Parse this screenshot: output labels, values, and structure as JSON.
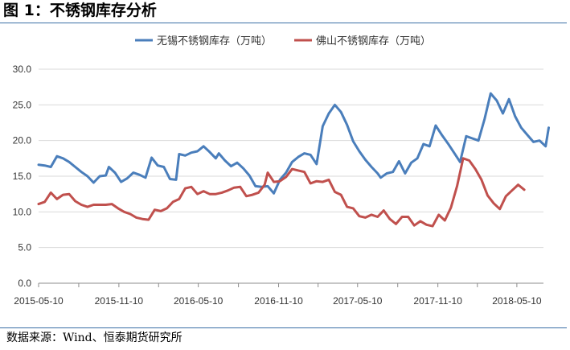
{
  "header": {
    "title": "图 1：不锈钢库存分析"
  },
  "footer": {
    "source": "数据来源：Wind、恒泰期货研究所"
  },
  "chart_data": {
    "type": "line",
    "title": "",
    "xlabel": "",
    "ylabel": "",
    "ylim": [
      0,
      30
    ],
    "yticks": [
      "0.0",
      "5.0",
      "10.0",
      "15.0",
      "20.0",
      "25.0",
      "30.0"
    ],
    "xtick_labels": [
      "2015-05-10",
      "2015-11-10",
      "2016-05-10",
      "2016-11-10",
      "2017-05-10",
      "2017-11-10",
      "2018-05-10"
    ],
    "x_range": [
      "2015-05-10",
      "2018-07-10"
    ],
    "grid": "horizontal",
    "legend_position": "top-center",
    "series": [
      {
        "name": "无锡不锈钢库存（万吨）",
        "color": "#4a7ebb",
        "points": [
          [
            "2015-05-10",
            16.6
          ],
          [
            "2015-05-24",
            16.5
          ],
          [
            "2015-06-07",
            16.3
          ],
          [
            "2015-06-21",
            17.8
          ],
          [
            "2015-07-05",
            17.5
          ],
          [
            "2015-07-19",
            17.0
          ],
          [
            "2015-08-02",
            16.3
          ],
          [
            "2015-08-16",
            15.6
          ],
          [
            "2015-08-30",
            15.0
          ],
          [
            "2015-09-13",
            14.1
          ],
          [
            "2015-09-27",
            15.0
          ],
          [
            "2015-10-11",
            15.1
          ],
          [
            "2015-10-18",
            16.3
          ],
          [
            "2015-11-01",
            15.5
          ],
          [
            "2015-11-15",
            14.2
          ],
          [
            "2015-11-29",
            14.7
          ],
          [
            "2015-12-13",
            15.5
          ],
          [
            "2015-12-27",
            15.2
          ],
          [
            "2016-01-10",
            14.8
          ],
          [
            "2016-01-24",
            17.6
          ],
          [
            "2016-02-07",
            16.5
          ],
          [
            "2016-02-21",
            16.3
          ],
          [
            "2016-03-06",
            14.6
          ],
          [
            "2016-03-20",
            14.5
          ],
          [
            "2016-03-27",
            18.1
          ],
          [
            "2016-04-10",
            17.9
          ],
          [
            "2016-04-24",
            18.3
          ],
          [
            "2016-05-08",
            18.5
          ],
          [
            "2016-05-22",
            19.2
          ],
          [
            "2016-06-05",
            18.4
          ],
          [
            "2016-06-19",
            17.5
          ],
          [
            "2016-06-26",
            18.2
          ],
          [
            "2016-07-10",
            17.2
          ],
          [
            "2016-07-24",
            16.4
          ],
          [
            "2016-08-07",
            16.9
          ],
          [
            "2016-08-21",
            16.1
          ],
          [
            "2016-09-04",
            15.1
          ],
          [
            "2016-09-18",
            13.6
          ],
          [
            "2016-10-02",
            13.5
          ],
          [
            "2016-10-16",
            13.6
          ],
          [
            "2016-10-30",
            12.6
          ],
          [
            "2016-11-13",
            14.5
          ],
          [
            "2016-11-27",
            15.5
          ],
          [
            "2016-12-11",
            17.0
          ],
          [
            "2016-12-25",
            17.7
          ],
          [
            "2017-01-08",
            18.2
          ],
          [
            "2017-01-22",
            18.0
          ],
          [
            "2017-02-05",
            16.7
          ],
          [
            "2017-02-19",
            22.0
          ],
          [
            "2017-03-05",
            23.8
          ],
          [
            "2017-03-19",
            25.0
          ],
          [
            "2017-04-02",
            24.0
          ],
          [
            "2017-04-16",
            22.2
          ],
          [
            "2017-04-30",
            19.9
          ],
          [
            "2017-05-14",
            18.5
          ],
          [
            "2017-05-28",
            17.3
          ],
          [
            "2017-06-11",
            16.3
          ],
          [
            "2017-06-25",
            15.4
          ],
          [
            "2017-07-02",
            14.8
          ],
          [
            "2017-07-16",
            15.4
          ],
          [
            "2017-07-30",
            15.6
          ],
          [
            "2017-08-13",
            17.1
          ],
          [
            "2017-08-27",
            15.4
          ],
          [
            "2017-09-10",
            16.9
          ],
          [
            "2017-09-24",
            17.5
          ],
          [
            "2017-10-08",
            19.5
          ],
          [
            "2017-10-22",
            19.2
          ],
          [
            "2017-11-05",
            22.1
          ],
          [
            "2017-11-19",
            20.8
          ],
          [
            "2017-12-03",
            19.6
          ],
          [
            "2017-12-17",
            18.3
          ],
          [
            "2017-12-31",
            17.0
          ],
          [
            "2018-01-14",
            20.6
          ],
          [
            "2018-01-28",
            20.3
          ],
          [
            "2018-02-11",
            20.0
          ],
          [
            "2018-02-25",
            23.0
          ],
          [
            "2018-03-11",
            26.6
          ],
          [
            "2018-03-25",
            25.6
          ],
          [
            "2018-04-08",
            23.8
          ],
          [
            "2018-04-22",
            25.8
          ],
          [
            "2018-05-06",
            23.4
          ],
          [
            "2018-05-20",
            21.8
          ],
          [
            "2018-06-03",
            20.8
          ],
          [
            "2018-06-17",
            19.8
          ],
          [
            "2018-07-01",
            20.0
          ],
          [
            "2018-07-15",
            19.2
          ],
          [
            "2018-07-22",
            21.8
          ]
        ]
      },
      {
        "name": "佛山不锈钢库存（万吨）",
        "color": "#c0504d",
        "points": [
          [
            "2015-05-10",
            11.1
          ],
          [
            "2015-05-24",
            11.4
          ],
          [
            "2015-06-07",
            12.7
          ],
          [
            "2015-06-21",
            11.8
          ],
          [
            "2015-07-05",
            12.4
          ],
          [
            "2015-07-19",
            12.5
          ],
          [
            "2015-08-02",
            11.5
          ],
          [
            "2015-08-16",
            11.0
          ],
          [
            "2015-08-30",
            10.7
          ],
          [
            "2015-09-13",
            11.0
          ],
          [
            "2015-09-27",
            11.0
          ],
          [
            "2015-10-11",
            11.0
          ],
          [
            "2015-10-25",
            11.1
          ],
          [
            "2015-11-08",
            10.5
          ],
          [
            "2015-11-22",
            10.0
          ],
          [
            "2015-12-06",
            9.7
          ],
          [
            "2015-12-20",
            9.2
          ],
          [
            "2016-01-03",
            9.0
          ],
          [
            "2016-01-17",
            8.9
          ],
          [
            "2016-01-31",
            10.3
          ],
          [
            "2016-02-14",
            10.1
          ],
          [
            "2016-02-28",
            10.5
          ],
          [
            "2016-03-13",
            11.4
          ],
          [
            "2016-03-27",
            11.8
          ],
          [
            "2016-04-10",
            13.3
          ],
          [
            "2016-04-24",
            13.5
          ],
          [
            "2016-05-08",
            12.5
          ],
          [
            "2016-05-22",
            12.9
          ],
          [
            "2016-06-05",
            12.5
          ],
          [
            "2016-06-19",
            12.5
          ],
          [
            "2016-07-03",
            12.7
          ],
          [
            "2016-07-17",
            13.0
          ],
          [
            "2016-07-31",
            13.4
          ],
          [
            "2016-08-14",
            13.5
          ],
          [
            "2016-08-28",
            12.2
          ],
          [
            "2016-09-11",
            12.4
          ],
          [
            "2016-09-25",
            12.7
          ],
          [
            "2016-10-09",
            13.8
          ],
          [
            "2016-10-16",
            15.5
          ],
          [
            "2016-10-30",
            14.2
          ],
          [
            "2016-11-13",
            14.3
          ],
          [
            "2016-11-27",
            14.9
          ],
          [
            "2016-12-11",
            16.0
          ],
          [
            "2016-12-25",
            15.8
          ],
          [
            "2017-01-08",
            15.6
          ],
          [
            "2017-01-22",
            14.0
          ],
          [
            "2017-02-05",
            14.3
          ],
          [
            "2017-02-19",
            14.2
          ],
          [
            "2017-03-05",
            14.5
          ],
          [
            "2017-03-19",
            12.8
          ],
          [
            "2017-04-02",
            12.4
          ],
          [
            "2017-04-16",
            10.7
          ],
          [
            "2017-04-30",
            10.5
          ],
          [
            "2017-05-14",
            9.4
          ],
          [
            "2017-05-28",
            9.2
          ],
          [
            "2017-06-11",
            9.6
          ],
          [
            "2017-06-25",
            9.3
          ],
          [
            "2017-07-09",
            10.2
          ],
          [
            "2017-07-23",
            9.0
          ],
          [
            "2017-08-06",
            8.3
          ],
          [
            "2017-08-20",
            9.3
          ],
          [
            "2017-09-03",
            9.3
          ],
          [
            "2017-09-17",
            8.1
          ],
          [
            "2017-10-01",
            8.7
          ],
          [
            "2017-10-15",
            8.2
          ],
          [
            "2017-10-29",
            8.0
          ],
          [
            "2017-11-12",
            9.6
          ],
          [
            "2017-11-26",
            8.8
          ],
          [
            "2017-12-10",
            10.6
          ],
          [
            "2017-12-24",
            13.6
          ],
          [
            "2018-01-07",
            17.5
          ],
          [
            "2018-01-21",
            17.2
          ],
          [
            "2018-02-04",
            16.0
          ],
          [
            "2018-02-18",
            14.5
          ],
          [
            "2018-03-04",
            12.3
          ],
          [
            "2018-03-18",
            11.2
          ],
          [
            "2018-04-01",
            10.4
          ],
          [
            "2018-04-15",
            12.2
          ],
          [
            "2018-04-29",
            13.0
          ],
          [
            "2018-05-13",
            13.8
          ],
          [
            "2018-05-27",
            13.1
          ]
        ]
      }
    ]
  }
}
